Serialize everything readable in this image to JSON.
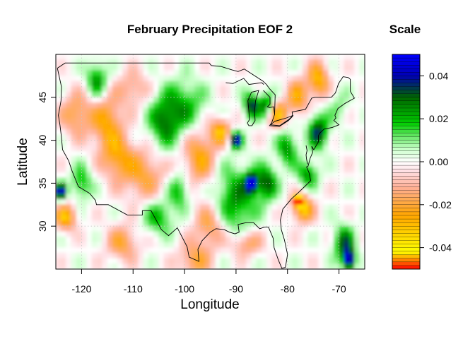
{
  "map": {
    "title": "February Precipitation EOF 2",
    "x_axis_label": "Longitude",
    "y_axis_label": "Latitude",
    "lon_range": [
      -125,
      -65
    ],
    "lat_range": [
      25,
      50
    ],
    "lon_ticks": [
      -120,
      -110,
      -100,
      -90,
      -80,
      -70
    ],
    "lat_ticks": [
      30,
      35,
      40,
      45
    ],
    "grid": "dotted"
  },
  "legend": {
    "title": "Scale",
    "range": [
      -0.05,
      0.05
    ],
    "ticks": [
      {
        "value": 0.04,
        "label": "0.04"
      },
      {
        "value": 0.02,
        "label": "0.02"
      },
      {
        "value": 0.0,
        "label": "0.00"
      },
      {
        "value": -0.02,
        "label": "-0.02"
      },
      {
        "value": -0.04,
        "label": "-0.04"
      }
    ],
    "colors": {
      "low": "#ff0000",
      "lower_mid": "#ffff00",
      "mid_neg": "#ffa500",
      "neutral_neg": "#ffd0d0",
      "neutral": "#ffffff",
      "mid_pos": "#00cc00",
      "upper_mid": "#006400",
      "high": "#0000ff"
    }
  }
}
